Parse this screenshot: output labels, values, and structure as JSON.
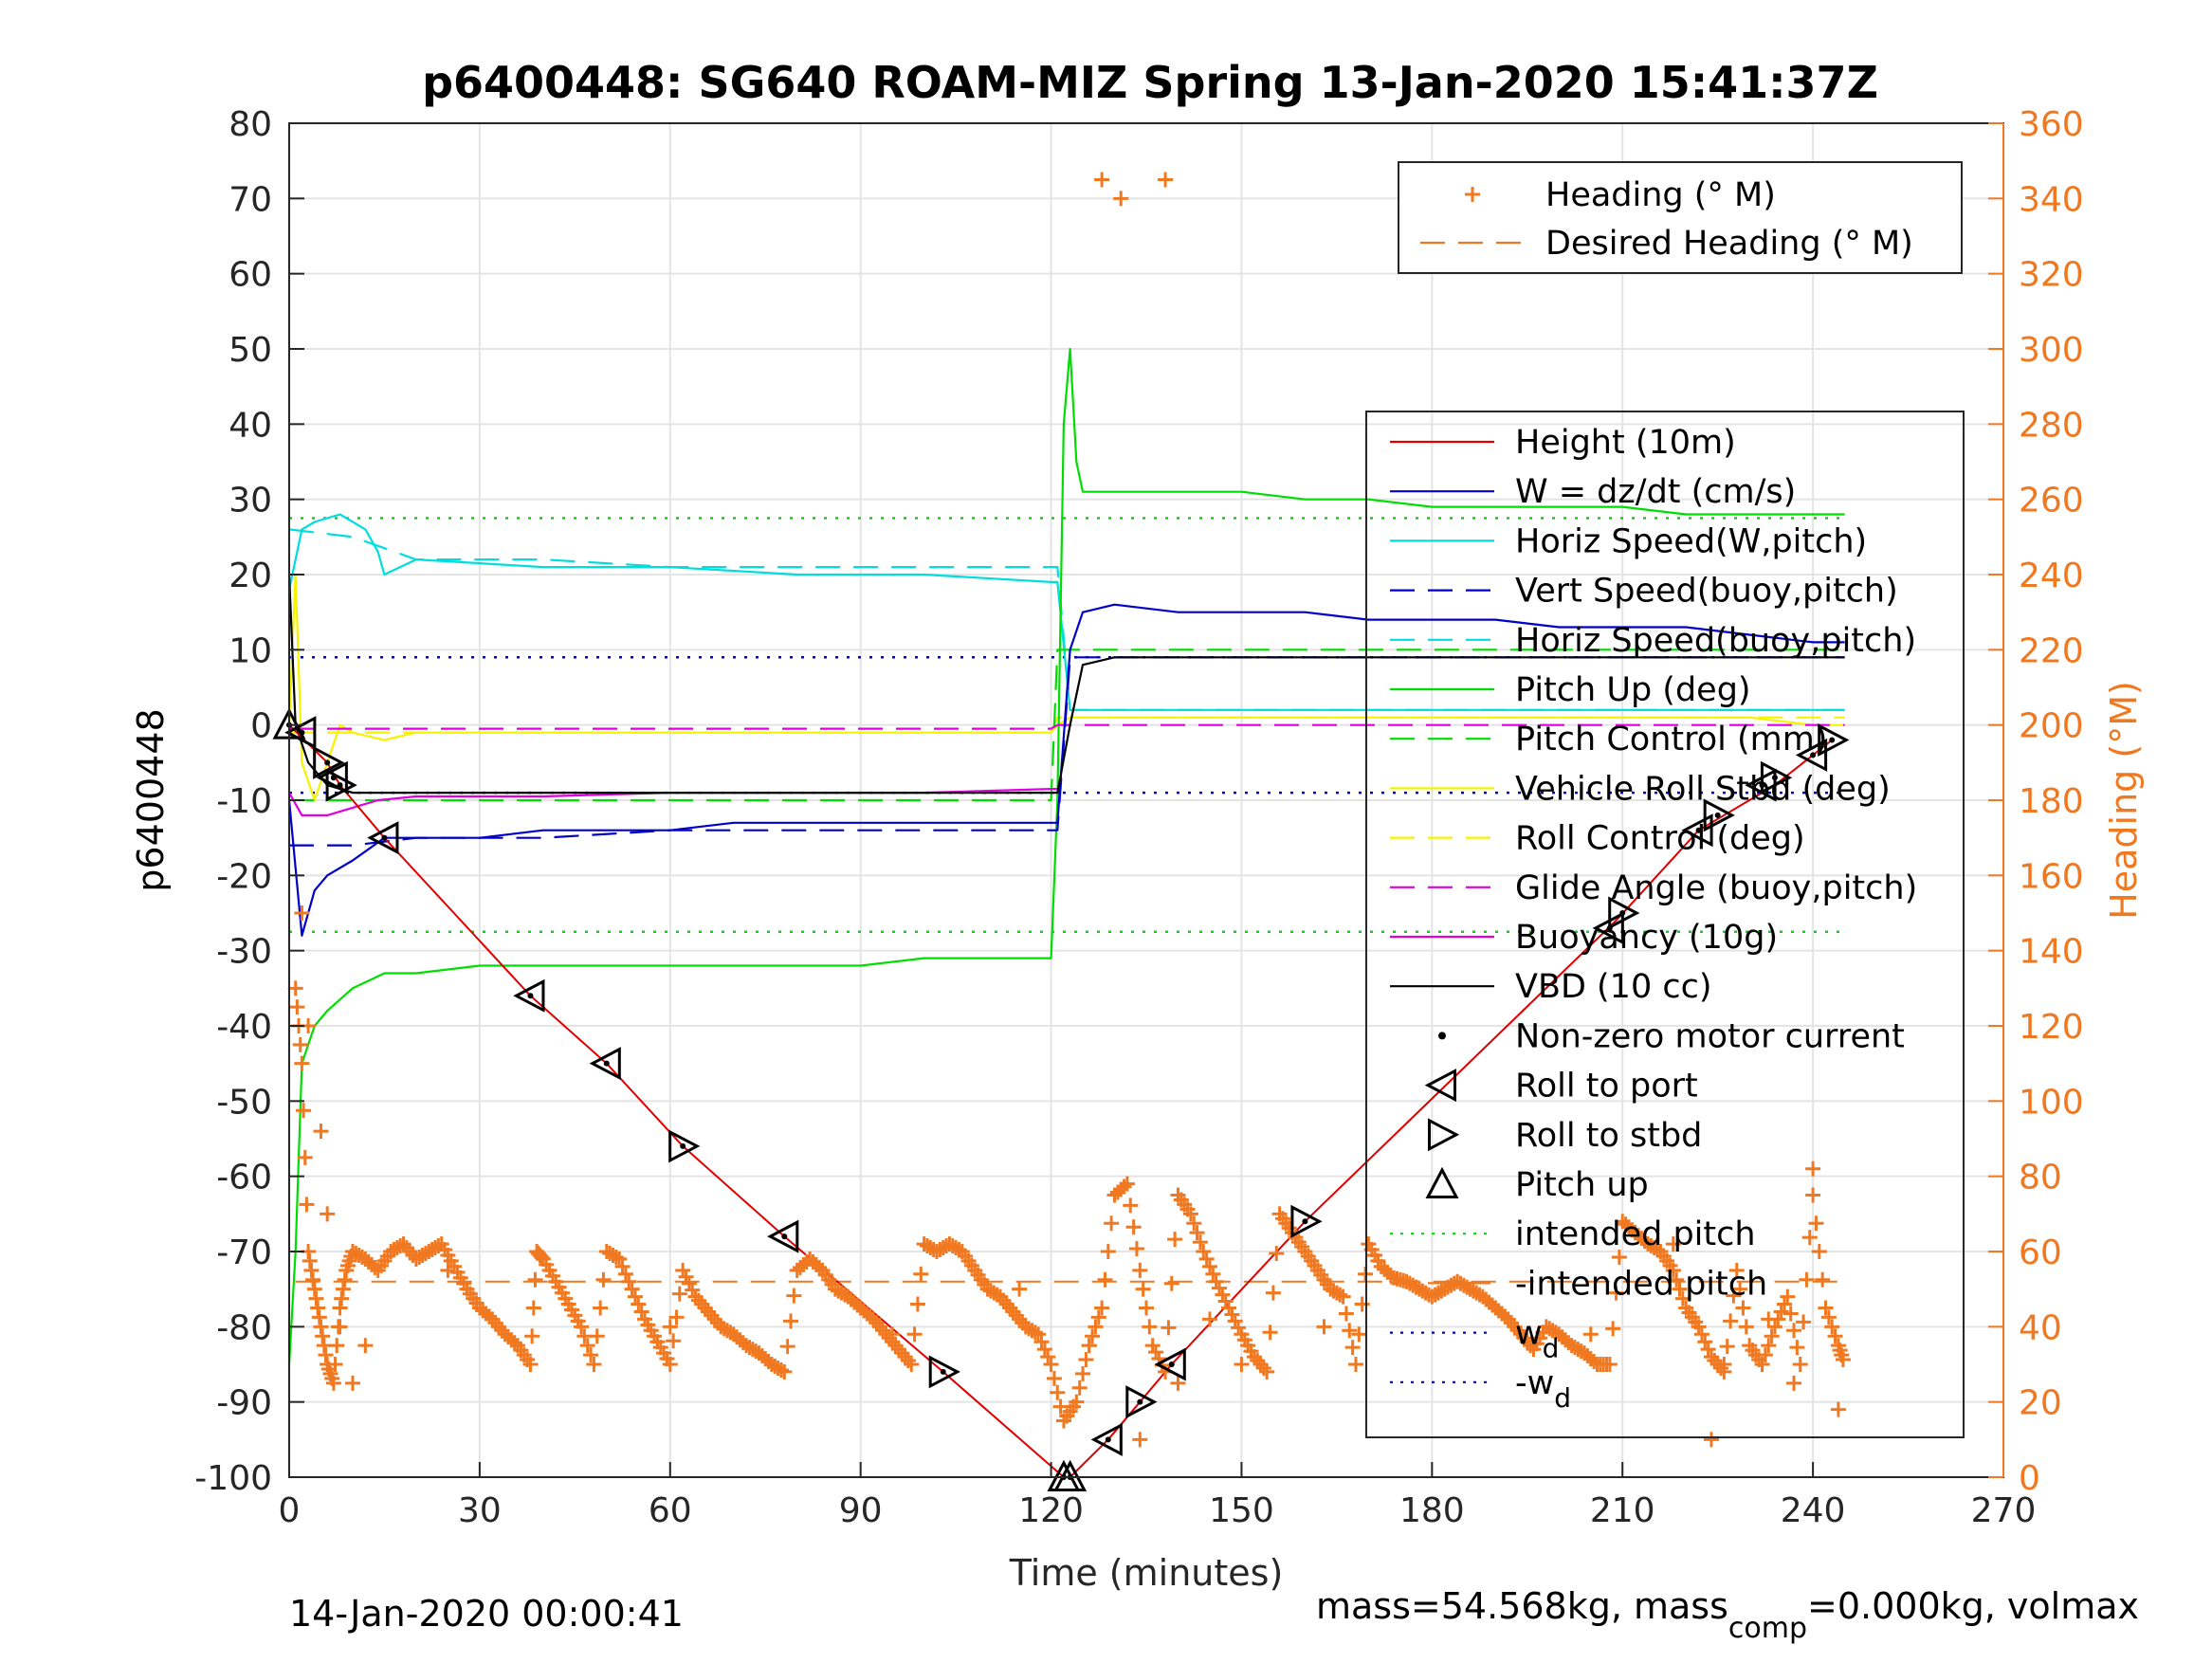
{
  "chart_data": {
    "type": "line",
    "title": "p6400448: SG640 ROAM-MIZ Spring 13-Jan-2020 15:41:37Z",
    "xlabel": "Time (minutes)",
    "ylabel": "p6400448",
    "y2label": "Heading (°M)",
    "xlim": [
      0,
      270
    ],
    "ylim": [
      -100,
      80
    ],
    "y2lim": [
      0,
      360
    ],
    "x_ticks": [
      "0",
      "30",
      "60",
      "90",
      "120",
      "150",
      "180",
      "210",
      "240",
      "270"
    ],
    "y_ticks": [
      "80",
      "70",
      "60",
      "50",
      "40",
      "30",
      "20",
      "10",
      "0",
      "-10",
      "-20",
      "-30",
      "-40",
      "-50",
      "-60",
      "-70",
      "-80",
      "-90",
      "-100"
    ],
    "y2_ticks": [
      "360",
      "340",
      "320",
      "300",
      "280",
      "260",
      "240",
      "220",
      "200",
      "180",
      "160",
      "140",
      "120",
      "100",
      "80",
      "60",
      "40",
      "20",
      "0"
    ],
    "grid": true,
    "footer_left": "14-Jan-2020 00:00:41",
    "footer_right": {
      "prefix": "mass=54.568kg, mass",
      "sub": "comp",
      "suffix": "=0.000kg, volmax"
    },
    "legend_top": [
      {
        "name": "Heading (° M)",
        "color": "#F07820",
        "style": "plus"
      },
      {
        "name": "Desired Heading (° M)",
        "color": "#F07820",
        "style": "dash"
      }
    ],
    "legend_main": [
      {
        "name": "Height (10m)",
        "color": "#E00000",
        "style": "solid"
      },
      {
        "name": "W = dz/dt (cm/s)",
        "color": "#0000C8",
        "style": "solid"
      },
      {
        "name": "Horiz Speed(W,pitch)",
        "color": "#00DDDD",
        "style": "solid"
      },
      {
        "name": "Vert Speed(buoy,pitch)",
        "color": "#0000C8",
        "style": "dash"
      },
      {
        "name": "Horiz Speed(buoy,pitch)",
        "color": "#00DDDD",
        "style": "dash"
      },
      {
        "name": "Pitch Up (deg)",
        "color": "#00DD00",
        "style": "solid"
      },
      {
        "name": "Pitch Control (mm)",
        "color": "#00DD00",
        "style": "dash"
      },
      {
        "name": "Vehicle Roll Stbd (deg)",
        "color": "#F4F400",
        "style": "solid"
      },
      {
        "name": "Roll Control (deg)",
        "color": "#F4F400",
        "style": "dash"
      },
      {
        "name": "Glide Angle (buoy,pitch)",
        "color": "#E000E0",
        "style": "dash"
      },
      {
        "name": "Buoyancy (10g)",
        "color": "#E000E0",
        "style": "solid"
      },
      {
        "name": "VBD (10 cc)",
        "color": "#000000",
        "style": "solid"
      },
      {
        "name": "Non-zero motor current",
        "color": "#000000",
        "style": "dot"
      },
      {
        "name": "Roll to port",
        "color": "#000000",
        "style": "tri-left"
      },
      {
        "name": "Roll to stbd",
        "color": "#000000",
        "style": "tri-right"
      },
      {
        "name": "Pitch up",
        "color": "#000000",
        "style": "tri-up"
      },
      {
        "name": "intended pitch",
        "color": "#00DD00",
        "style": "dotted"
      },
      {
        "name": "-intended pitch",
        "color": "#F07820",
        "style": "dash"
      },
      {
        "name": "w",
        "sub": "d",
        "color": "#0000C8",
        "style": "dotted"
      },
      {
        "name": "-w",
        "sub": "d",
        "color": "#0000C8",
        "style": "dotted"
      }
    ],
    "series": {
      "height": {
        "x": [
          0,
          6,
          8,
          15,
          38,
          50,
          62,
          78,
          103,
          122,
          123,
          129,
          134,
          139,
          160,
          209,
          222,
          234,
          243
        ],
        "y": [
          0,
          -5,
          -8,
          -15,
          -36,
          -45,
          -56,
          -68,
          -86,
          -100,
          -100,
          -95,
          -90,
          -85,
          -66,
          -26,
          -14,
          -8,
          -2
        ]
      },
      "pitch_up": {
        "x": [
          0,
          1,
          2,
          4,
          6,
          10,
          15,
          20,
          30,
          40,
          50,
          60,
          70,
          80,
          90,
          100,
          110,
          120,
          121,
          122,
          123,
          124,
          125,
          130,
          140,
          150,
          160,
          170,
          180,
          190,
          200,
          210,
          220,
          230,
          240,
          245
        ],
        "y": [
          -85,
          -70,
          -45,
          -40,
          -38,
          -35,
          -33,
          -33,
          -32,
          -32,
          -32,
          -32,
          -32,
          -32,
          -32,
          -31,
          -31,
          -31,
          -10,
          40,
          50,
          35,
          31,
          31,
          31,
          31,
          30,
          30,
          29,
          29,
          29,
          29,
          28,
          28,
          28,
          28
        ]
      },
      "w_measured": {
        "x": [
          0,
          2,
          4,
          6,
          10,
          15,
          20,
          30,
          40,
          50,
          60,
          70,
          80,
          90,
          100,
          110,
          120,
          121,
          123,
          125,
          130,
          140,
          150,
          160,
          170,
          180,
          190,
          200,
          210,
          220,
          230,
          240,
          245
        ],
        "y": [
          -10,
          -28,
          -22,
          -20,
          -18,
          -15,
          -15,
          -15,
          -14,
          -14,
          -14,
          -13,
          -13,
          -13,
          -13,
          -13,
          -13,
          -13,
          10,
          15,
          16,
          15,
          15,
          15,
          14,
          14,
          14,
          13,
          13,
          13,
          12,
          11,
          11
        ]
      },
      "vert_speed": {
        "x": [
          0,
          10,
          20,
          40,
          60,
          80,
          100,
          120,
          121,
          123,
          130,
          150,
          180,
          210,
          240,
          245
        ],
        "y": [
          -16,
          -16,
          -15,
          -15,
          -14,
          -14,
          -14,
          -14,
          -14,
          9,
          9,
          9,
          9,
          9,
          9,
          9
        ]
      },
      "horiz_speed": {
        "x": [
          0,
          2,
          4,
          8,
          12,
          14,
          15,
          20,
          40,
          60,
          80,
          100,
          120,
          121,
          123,
          130,
          150,
          180,
          210,
          245
        ],
        "y": [
          18,
          26,
          27,
          28,
          26,
          23,
          20,
          22,
          21,
          21,
          20,
          20,
          19,
          19,
          2,
          2,
          2,
          2,
          2,
          2
        ]
      },
      "horiz_speed_buoy": {
        "x": [
          0,
          10,
          20,
          40,
          60,
          80,
          100,
          120,
          121,
          123,
          130,
          150,
          180,
          210,
          245
        ],
        "y": [
          26,
          25,
          22,
          22,
          21,
          21,
          21,
          21,
          21,
          2,
          2,
          2,
          2,
          2,
          2
        ]
      },
      "pitch_control": {
        "x": [
          0,
          120,
          121,
          245
        ],
        "y": [
          -10,
          -10,
          10,
          10
        ]
      },
      "roll": {
        "x": [
          0,
          1,
          2,
          4,
          6,
          8,
          10,
          15,
          20,
          40,
          60,
          80,
          100,
          120,
          121,
          123,
          125,
          130,
          150,
          180,
          210,
          230,
          240,
          245
        ],
        "y": [
          0,
          20,
          -5,
          -10,
          -5,
          0,
          -1,
          -2,
          -1,
          -1,
          -1,
          -1,
          -1,
          -1,
          0,
          1,
          1,
          1,
          1,
          1,
          1,
          1,
          0,
          0
        ]
      },
      "roll_control": {
        "x": [
          0,
          120,
          121,
          245
        ],
        "y": [
          -1,
          -1,
          1,
          1
        ]
      },
      "glide_angle": {
        "x": [
          0,
          120,
          121,
          245
        ],
        "y": [
          -0.5,
          -0.5,
          0,
          0
        ]
      },
      "buoyancy": {
        "x": [
          0,
          2,
          6,
          10,
          14,
          20,
          40,
          60,
          80,
          100,
          120,
          121
        ],
        "y": [
          -9,
          -12,
          -12,
          -11,
          -10,
          -9.5,
          -9.5,
          -9,
          -9,
          -9,
          -8.5,
          -8.5
        ]
      },
      "vbd": {
        "x": [
          0,
          1,
          3,
          6,
          10,
          20,
          60,
          100,
          121,
          123,
          125,
          130,
          150,
          180,
          210,
          245
        ],
        "y": [
          20,
          0,
          -5,
          -8,
          -9,
          -9,
          -9,
          -9,
          -9,
          0,
          8,
          9,
          9,
          9,
          9,
          9
        ]
      },
      "intended_pitch": {
        "x": [
          0,
          245
        ],
        "y": [
          27.5,
          27.5
        ]
      },
      "neg_intended_pitch": {
        "x": [
          0,
          245
        ],
        "y": [
          -27.5,
          -27.5
        ]
      },
      "w_d": {
        "x": [
          0,
          245
        ],
        "y": [
          9,
          9
        ]
      },
      "neg_w_d": {
        "x": [
          0,
          245
        ],
        "y": [
          -9,
          -9
        ]
      },
      "desired_heading": {
        "x": [
          1,
          245
        ],
        "y": [
          52,
          52
        ]
      },
      "heading": {
        "x": [
          1,
          2,
          3,
          4,
          5,
          6,
          7,
          8,
          9,
          10,
          12,
          14,
          16,
          18,
          20,
          22,
          24,
          26,
          28,
          30,
          32,
          34,
          36,
          38,
          39,
          40,
          42,
          44,
          46,
          48,
          50,
          52,
          54,
          56,
          58,
          60,
          62,
          64,
          66,
          68,
          70,
          72,
          74,
          76,
          78,
          80,
          82,
          84,
          86,
          88,
          90,
          92,
          94,
          96,
          98,
          100,
          102,
          104,
          106,
          108,
          110,
          112,
          114,
          116,
          118,
          120,
          122,
          124,
          126,
          128,
          130,
          132,
          134,
          136,
          138,
          140,
          142,
          144,
          146,
          148,
          150,
          152,
          154,
          156,
          158,
          160,
          162,
          164,
          166,
          168,
          170,
          172,
          174,
          176,
          178,
          180,
          182,
          184,
          186,
          188,
          190,
          192,
          194,
          196,
          198,
          200,
          202,
          204,
          206,
          208,
          210,
          212,
          214,
          216,
          218,
          220,
          222,
          224,
          226,
          228,
          230,
          232,
          234,
          236,
          238,
          240,
          242,
          244,
          245
        ],
        "y": [
          130,
          110,
          60,
          50,
          40,
          30,
          25,
          45,
          55,
          60,
          58,
          55,
          60,
          62,
          58,
          60,
          62,
          56,
          50,
          45,
          42,
          38,
          35,
          30,
          60,
          58,
          52,
          46,
          40,
          30,
          60,
          58,
          50,
          42,
          36,
          30,
          55,
          48,
          44,
          40,
          38,
          35,
          33,
          30,
          28,
          55,
          58,
          55,
          50,
          48,
          45,
          42,
          38,
          34,
          30,
          62,
          60,
          62,
          60,
          55,
          50,
          48,
          44,
          40,
          38,
          30,
          15,
          20,
          35,
          45,
          75,
          78,
          55,
          35,
          28,
          75,
          70,
          60,
          52,
          45,
          38,
          32,
          28,
          70,
          65,
          60,
          55,
          50,
          48,
          30,
          62,
          56,
          53,
          52,
          50,
          48,
          50,
          52,
          50,
          48,
          45,
          42,
          38,
          34,
          40,
          38,
          35,
          33,
          30,
          30,
          68,
          65,
          62,
          60,
          55,
          45,
          40,
          32,
          28,
          55,
          35,
          30,
          40,
          48,
          30,
          75,
          45,
          35,
          30
        ]
      },
      "heading_scatter": {
        "x": [
          2,
          3,
          5,
          6,
          8,
          10,
          12,
          25,
          60,
          95,
          115,
          126,
          128,
          131,
          134,
          138,
          140,
          145,
          150,
          163,
          205,
          212,
          218,
          224,
          226,
          233,
          237,
          240,
          244
        ],
        "y": [
          150,
          120,
          92,
          70,
          40,
          25,
          35,
          55,
          40,
          38,
          50,
          35,
          345,
          340,
          10,
          345,
          25,
          42,
          30,
          40,
          38,
          65,
          62,
          10,
          30,
          42,
          25,
          82,
          18
        ]
      },
      "motor_events": [
        {
          "x": 0,
          "y": 0,
          "kind": "pitch_up"
        },
        {
          "x": 2,
          "y": -1,
          "kind": "roll_port"
        },
        {
          "x": 6,
          "y": -5,
          "kind": "roll_stbd"
        },
        {
          "x": 7,
          "y": -7,
          "kind": "roll_port"
        },
        {
          "x": 8,
          "y": -8,
          "kind": "roll_stbd"
        },
        {
          "x": 15,
          "y": -15,
          "kind": "roll_port"
        },
        {
          "x": 38,
          "y": -36,
          "kind": "roll_port"
        },
        {
          "x": 50,
          "y": -45,
          "kind": "roll_port"
        },
        {
          "x": 62,
          "y": -56,
          "kind": "roll_stbd"
        },
        {
          "x": 78,
          "y": -68,
          "kind": "roll_port"
        },
        {
          "x": 103,
          "y": -86,
          "kind": "roll_stbd"
        },
        {
          "x": 122,
          "y": -100,
          "kind": "pitch_up"
        },
        {
          "x": 123,
          "y": -100,
          "kind": "pitch_up"
        },
        {
          "x": 129,
          "y": -95,
          "kind": "roll_port"
        },
        {
          "x": 134,
          "y": -90,
          "kind": "roll_stbd"
        },
        {
          "x": 139,
          "y": -85,
          "kind": "roll_port"
        },
        {
          "x": 160,
          "y": -66,
          "kind": "roll_stbd"
        },
        {
          "x": 208,
          "y": -27,
          "kind": "roll_port"
        },
        {
          "x": 210,
          "y": -25,
          "kind": "roll_stbd"
        },
        {
          "x": 222,
          "y": -14,
          "kind": "roll_port"
        },
        {
          "x": 225,
          "y": -12,
          "kind": "roll_stbd"
        },
        {
          "x": 232,
          "y": -8,
          "kind": "roll_port"
        },
        {
          "x": 234,
          "y": -7,
          "kind": "roll_stbd"
        },
        {
          "x": 240,
          "y": -4,
          "kind": "roll_port"
        },
        {
          "x": 243,
          "y": -2,
          "kind": "roll_stbd"
        }
      ]
    }
  }
}
